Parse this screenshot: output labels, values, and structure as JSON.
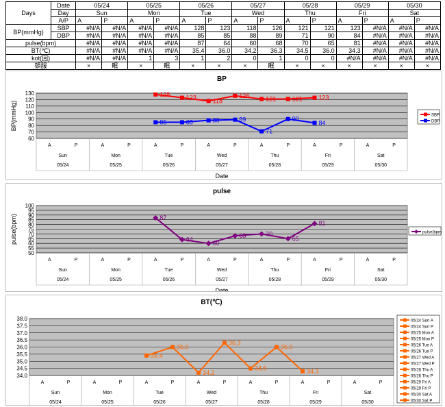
{
  "table": {
    "days_label": "Days",
    "date_label": "Date",
    "day_label": "Day",
    "ap_label": "A/P",
    "bp_label": "BP(mmHg)",
    "sbp_label": "SBP",
    "dbp_label": "DBP",
    "pulse_label": "pulse(bpm)",
    "bt_label": "BT(℃)",
    "kot_label": "kot(回)",
    "med_label": "頓服",
    "dates": [
      "05/24",
      "05/25",
      "05/26",
      "05/27",
      "05/28",
      "05/29",
      "05/30"
    ],
    "days": [
      "Sun",
      "Mon",
      "Tue",
      "Wed",
      "Thu",
      "Fri",
      "Sat"
    ],
    "ap": [
      "A",
      "P"
    ],
    "sbp": [
      "#N/A",
      "#N/A",
      "#N/A",
      "#N/A",
      "128",
      "123",
      "118",
      "126",
      "121",
      "121",
      "123",
      "#N/A",
      "#N/A",
      "#N/A"
    ],
    "dbp": [
      "#N/A",
      "#N/A",
      "#N/A",
      "#N/A",
      "85",
      "85",
      "88",
      "89",
      "71",
      "90",
      "84",
      "#N/A",
      "#N/A",
      "#N/A"
    ],
    "pulse": [
      "#N/A",
      "#N/A",
      "#N/A",
      "#N/A",
      "87",
      "64",
      "60",
      "68",
      "70",
      "65",
      "81",
      "#N/A",
      "#N/A",
      "#N/A"
    ],
    "bt": [
      "#N/A",
      "#N/A",
      "#N/A",
      "#N/A",
      "35.4",
      "36.0",
      "34.2",
      "36.3",
      "34.5",
      "36.0",
      "34.3",
      "#N/A",
      "#N/A",
      "#N/A"
    ],
    "kot": [
      "#N/A",
      "#N/A",
      "1",
      "3",
      "1",
      "2",
      "0",
      "1",
      "0",
      "0",
      "#N/A",
      "#N/A",
      "#N/A",
      "#N/A"
    ],
    "med": [
      "×",
      "眠",
      "×",
      "眠",
      "×",
      "×",
      "×",
      "眠",
      "×",
      "×",
      "×",
      "×",
      "×",
      "×"
    ]
  },
  "chart_data": [
    {
      "type": "line",
      "title": "BP",
      "ylabel": "BP(mmHg)",
      "xlabel": "Date",
      "ylim": [
        60,
        130
      ],
      "yticks": [
        60,
        70,
        80,
        90,
        100,
        110,
        120,
        130
      ],
      "grid": true,
      "legend": "right",
      "x_ap": [
        "A",
        "P",
        "A",
        "P",
        "A",
        "P",
        "A",
        "P",
        "A",
        "P",
        "A",
        "P",
        "A",
        "P"
      ],
      "x_days": [
        "Sun",
        "Mon",
        "Tue",
        "Wed",
        "Thu",
        "Fri",
        "Sat"
      ],
      "x_dates": [
        "05/24",
        "05/25",
        "05/26",
        "05/27",
        "05/28",
        "05/29",
        "05/30"
      ],
      "series": [
        {
          "name": "SBP",
          "color": "#ff0000",
          "marker": "square",
          "values": [
            null,
            null,
            null,
            null,
            128,
            123,
            118,
            126,
            121,
            121,
            123,
            null,
            null,
            null
          ]
        },
        {
          "name": "DBP",
          "color": "#0000ff",
          "marker": "square",
          "values": [
            null,
            null,
            null,
            null,
            85,
            85,
            88,
            89,
            71,
            90,
            84,
            null,
            null,
            null
          ]
        }
      ]
    },
    {
      "type": "line",
      "title": "pulse",
      "ylabel": "pulse(bpm)",
      "xlabel": "Date",
      "ylim": [
        50,
        100
      ],
      "yticks": [
        50,
        55,
        60,
        65,
        70,
        75,
        80,
        85,
        90,
        95,
        100
      ],
      "grid": true,
      "legend": "right",
      "x_ap": [
        "A",
        "P",
        "A",
        "P",
        "A",
        "P",
        "A",
        "P",
        "A",
        "P",
        "A",
        "P",
        "A",
        "P"
      ],
      "x_days": [
        "Sun",
        "Mon",
        "Tue",
        "Wed",
        "Thu",
        "Fri",
        "Sat"
      ],
      "x_dates": [
        "05/24",
        "05/25",
        "05/26",
        "05/27",
        "05/28",
        "05/29",
        "05/30"
      ],
      "series": [
        {
          "name": "pulse(bpm)",
          "color": "#800080",
          "marker": "diamond",
          "values": [
            null,
            null,
            null,
            null,
            87,
            64,
            60,
            68,
            70,
            65,
            81,
            null,
            null,
            null
          ]
        }
      ]
    },
    {
      "type": "line",
      "title": "BT(℃)",
      "ylabel": "",
      "xlabel": "",
      "ylim": [
        34.0,
        38.0
      ],
      "yticks": [
        "34.0",
        "34.5",
        "35.0",
        "35.5",
        "36.0",
        "36.5",
        "37.0",
        "37.5",
        "38.0"
      ],
      "grid": true,
      "legend": "right",
      "x_ap": [
        "A",
        "P",
        "A",
        "P",
        "A",
        "P",
        "A",
        "P",
        "A",
        "P",
        "A",
        "P",
        "A",
        "P"
      ],
      "x_days": [
        "Sun",
        "Mon",
        "Tue",
        "Wed",
        "Thu",
        "Fri",
        "Sat"
      ],
      "x_dates": [
        "05/24",
        "05/25",
        "05/26",
        "05/27",
        "05/28",
        "05/29",
        "05/30"
      ],
      "series": [
        {
          "name": "BT",
          "color": "#ff6600",
          "marker": "square",
          "values": [
            null,
            null,
            null,
            null,
            35.4,
            36.0,
            34.2,
            36.3,
            34.5,
            36.0,
            34.3,
            null,
            null,
            null
          ],
          "labels": [
            "35.4",
            "36.0",
            "34.2",
            "36.3",
            "34.5",
            "36.0",
            "34.3"
          ]
        }
      ],
      "legend_entries": [
        "05/24 Sun A",
        "05/24 Sun P",
        "05/25 Mon A",
        "05/25 Mon P",
        "05/26 Tue A",
        "05/26 Tue P",
        "05/27 Wed A",
        "05/27 Wed P",
        "05/28 Thu A",
        "05/28 Thu P",
        "05/29 Fri A",
        "05/29 Fri P",
        "05/30 Sat A",
        "05/30 Sat P"
      ]
    }
  ]
}
